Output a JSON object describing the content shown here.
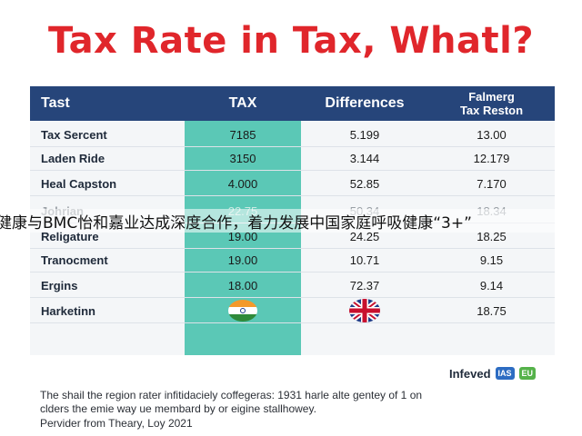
{
  "title": "Tax Rate in Tax, Whatl?",
  "chart_data": {
    "type": "table",
    "columns": [
      "Tast",
      "TAX",
      "Differences",
      "Falmerg Tax Reston"
    ],
    "rows": [
      {
        "label": "Tax Sercent",
        "tax": "7185",
        "differences": "5.199",
        "falmerg": "13.00"
      },
      {
        "label": "Laden Ride",
        "tax": "3150",
        "differences": "3.144",
        "falmerg": "12.179"
      },
      {
        "label": "Heal Capston",
        "tax": "4.000",
        "differences": "52.85",
        "falmerg": "7.170"
      },
      {
        "label": "Johrian",
        "tax": "22.75",
        "differences": "50.34",
        "falmerg": "18.34"
      },
      {
        "label": "Religature",
        "tax": "19.00",
        "differences": "24.25",
        "falmerg": "18.25"
      },
      {
        "label": "Tranocment",
        "tax": "19.00",
        "differences": "10.71",
        "falmerg": "9.15"
      },
      {
        "label": "Ergins",
        "tax": "18.00",
        "differences": "72.37",
        "falmerg": "9.14"
      },
      {
        "label": "Harketinn",
        "tax": "",
        "differences": "",
        "falmerg": "18.75"
      }
    ],
    "header_color": "#26457a",
    "highlight_color": "#5bc8b6",
    "title_color": "#e0262b"
  },
  "overlay_text": "健康与BMC怡和嘉业达成深度合作，着力发展中国家庭呼吸健康“3+”",
  "flags": {
    "tax_row_8": "india-flag-icon",
    "diff_row_8": "uk-flag-icon"
  },
  "logo": {
    "text": "Infeved",
    "badge1": "IAS",
    "badge2": "EU"
  },
  "footnote": {
    "line1": "The shail the region rater infitidaciely coffegeras: 1931 harle alte gentey of 1 on",
    "line2": "clders the emie way ue membard by or eigine stallhowey.",
    "source": "Pervider from Theary, Loy 2021"
  }
}
